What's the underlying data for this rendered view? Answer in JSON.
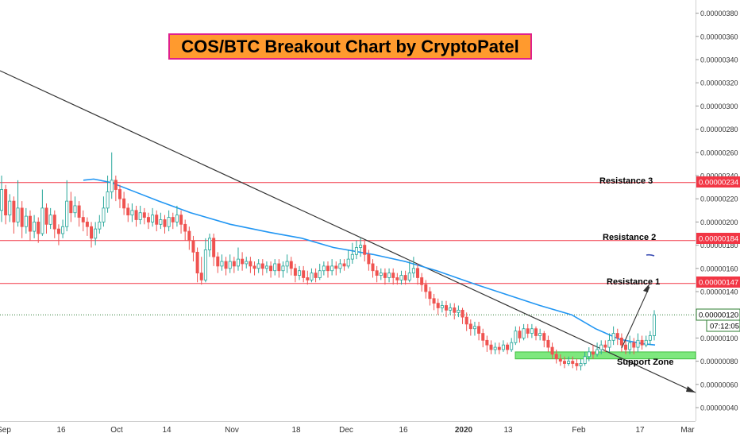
{
  "title": "COS/BTC Breakout Chart by CryptoPatel",
  "chart_data": {
    "type": "candlestick",
    "y_ticks": [
      "0.00000040",
      "0.00000060",
      "0.00000080",
      "0.00000100",
      "0.00000120",
      "0.00000140",
      "0.00000160",
      "0.00000180",
      "0.00000200",
      "0.00000220",
      "0.00000240",
      "0.00000260",
      "0.00000280",
      "0.00000300",
      "0.00000320",
      "0.00000340",
      "0.00000360",
      "0.00000380"
    ],
    "ylim": [
      3.4e-07,
      3.84e-06
    ],
    "x_ticks": [
      "Sep",
      "16",
      "Oct",
      "14",
      "Nov",
      "18",
      "Dec",
      "16",
      "2020",
      "13",
      "Feb",
      "17",
      "Mar"
    ],
    "levels": [
      {
        "name": "Resistance 3",
        "value": 2.34e-06,
        "badge": "0.00000234"
      },
      {
        "name": "Resistance 2",
        "value": 1.84e-06,
        "badge": "0.00000184"
      },
      {
        "name": "Resistance 1",
        "value": 1.47e-06,
        "badge": "0.00000147"
      }
    ],
    "support_zone": {
      "label": "Support Zone",
      "low": 8.2e-07,
      "high": 8.8e-07
    },
    "current_price": {
      "value": 1.2e-06,
      "badge": "0.00000120",
      "countdown": "07:12:05"
    },
    "colors": {
      "up": "#26a69a",
      "down": "#ef5350",
      "ma": "#2196f3",
      "resistance": "#f23645",
      "support": "#7ee87e",
      "trendline": "#333333"
    },
    "ma_series": [
      [
        105,
        2.36e-06
      ],
      [
        118,
        2.37e-06
      ],
      [
        140,
        2.34e-06
      ],
      [
        170,
        2.26e-06
      ],
      [
        200,
        2.18e-06
      ],
      [
        240,
        2.08e-06
      ],
      [
        290,
        1.98e-06
      ],
      [
        340,
        1.91e-06
      ],
      [
        380,
        1.86e-06
      ],
      [
        420,
        1.78e-06
      ],
      [
        470,
        1.72e-06
      ],
      [
        510,
        1.66e-06
      ],
      [
        550,
        1.58e-06
      ],
      [
        600,
        1.46e-06
      ],
      [
        640,
        1.37e-06
      ],
      [
        680,
        1.28e-06
      ],
      [
        720,
        1.2e-06
      ],
      [
        750,
        1.08e-06
      ],
      [
        780,
        9.9e-07
      ],
      [
        810,
        9.5e-07
      ],
      [
        825,
        9.4e-07
      ]
    ],
    "candles": [
      [
        2.1e-06,
        2.28e-06,
        2.4e-06,
        2e-06
      ],
      [
        2.28e-06,
        2.06e-06,
        2.32e-06,
        1.98e-06
      ],
      [
        2.06e-06,
        2.18e-06,
        2.24e-06,
        2e-06
      ],
      [
        2.18e-06,
        2e-06,
        2.22e-06,
        1.9e-06
      ],
      [
        2e-06,
        2.12e-06,
        2.36e-06,
        1.96e-06
      ],
      [
        2.12e-06,
        1.96e-06,
        2.18e-06,
        1.86e-06
      ],
      [
        1.96e-06,
        2.05e-06,
        2.12e-06,
        1.9e-06
      ],
      [
        2.05e-06,
        1.92e-06,
        2.1e-06,
        1.84e-06
      ],
      [
        1.92e-06,
        2e-06,
        2.06e-06,
        1.86e-06
      ],
      [
        2e-06,
        1.9e-06,
        2.04e-06,
        1.82e-06
      ],
      [
        1.9e-06,
        2.12e-06,
        2.28e-06,
        1.88e-06
      ],
      [
        2.12e-06,
        1.98e-06,
        2.16e-06,
        1.9e-06
      ],
      [
        1.98e-06,
        2.06e-06,
        2.12e-06,
        1.94e-06
      ],
      [
        2.06e-06,
        1.94e-06,
        2.1e-06,
        1.86e-06
      ],
      [
        1.94e-06,
        1.9e-06,
        1.98e-06,
        1.8e-06
      ],
      [
        1.9e-06,
        1.96e-06,
        2.02e-06,
        1.86e-06
      ],
      [
        1.96e-06,
        2.18e-06,
        2.36e-06,
        1.92e-06
      ],
      [
        2.18e-06,
        2.08e-06,
        2.26e-06,
        2e-06
      ],
      [
        2.08e-06,
        2.14e-06,
        2.22e-06,
        2.04e-06
      ],
      [
        2.14e-06,
        2.04e-06,
        2.18e-06,
        1.96e-06
      ],
      [
        2.04e-06,
        2e-06,
        2.1e-06,
        1.92e-06
      ],
      [
        2e-06,
        1.96e-06,
        2.04e-06,
        1.88e-06
      ],
      [
        1.96e-06,
        1.86e-06,
        2e-06,
        1.78e-06
      ],
      [
        1.86e-06,
        1.94e-06,
        2e-06,
        1.8e-06
      ],
      [
        1.94e-06,
        2e-06,
        2.06e-06,
        1.9e-06
      ],
      [
        2e-06,
        2.12e-06,
        2.22e-06,
        1.96e-06
      ],
      [
        2.12e-06,
        2.26e-06,
        2.4e-06,
        2.08e-06
      ],
      [
        2.26e-06,
        2.36e-06,
        2.6e-06,
        2.2e-06
      ],
      [
        2.36e-06,
        2.28e-06,
        2.4e-06,
        2.18e-06
      ],
      [
        2.28e-06,
        2.2e-06,
        2.32e-06,
        2.12e-06
      ],
      [
        2.2e-06,
        2.12e-06,
        2.26e-06,
        2.06e-06
      ],
      [
        2.12e-06,
        2.06e-06,
        2.16e-06,
        2e-06
      ],
      [
        2.06e-06,
        2.1e-06,
        2.16e-06,
        2e-06
      ],
      [
        2.1e-06,
        2.02e-06,
        2.14e-06,
        1.96e-06
      ],
      [
        2.02e-06,
        2.08e-06,
        2.14e-06,
        1.98e-06
      ],
      [
        2.08e-06,
        2.04e-06,
        2.12e-06,
        1.98e-06
      ],
      [
        2.04e-06,
        2e-06,
        2.08e-06,
        1.94e-06
      ],
      [
        2e-06,
        2.06e-06,
        2.12e-06,
        1.96e-06
      ],
      [
        2.06e-06,
        1.98e-06,
        2.1e-06,
        1.92e-06
      ],
      [
        1.98e-06,
        2.02e-06,
        2.08e-06,
        1.94e-06
      ],
      [
        2.02e-06,
        1.96e-06,
        2.06e-06,
        1.9e-06
      ],
      [
        1.96e-06,
        2.04e-06,
        2.1e-06,
        1.92e-06
      ],
      [
        2.04e-06,
        2e-06,
        2.08e-06,
        1.94e-06
      ],
      [
        2e-06,
        2.06e-06,
        2.14e-06,
        1.96e-06
      ],
      [
        2.06e-06,
        1.98e-06,
        2.1e-06,
        1.9e-06
      ],
      [
        1.98e-06,
        1.92e-06,
        2.02e-06,
        1.84e-06
      ],
      [
        1.92e-06,
        1.84e-06,
        1.96e-06,
        1.76e-06
      ],
      [
        1.84e-06,
        1.74e-06,
        1.88e-06,
        1.66e-06
      ],
      [
        1.74e-06,
        1.56e-06,
        1.78e-06,
        1.48e-06
      ],
      [
        1.56e-06,
        1.5e-06,
        1.7e-06,
        1.46e-06
      ],
      [
        1.5e-06,
        1.76e-06,
        1.86e-06,
        1.48e-06
      ],
      [
        1.76e-06,
        1.86e-06,
        1.9e-06,
        1.7e-06
      ],
      [
        1.86e-06,
        1.7e-06,
        1.9e-06,
        1.62e-06
      ],
      [
        1.7e-06,
        1.62e-06,
        1.74e-06,
        1.56e-06
      ],
      [
        1.62e-06,
        1.66e-06,
        1.72e-06,
        1.58e-06
      ],
      [
        1.66e-06,
        1.6e-06,
        1.7e-06,
        1.54e-06
      ],
      [
        1.6e-06,
        1.66e-06,
        1.72e-06,
        1.56e-06
      ],
      [
        1.66e-06,
        1.62e-06,
        1.7e-06,
        1.56e-06
      ],
      [
        1.62e-06,
        1.68e-06,
        1.78e-06,
        1.58e-06
      ],
      [
        1.68e-06,
        1.64e-06,
        1.74e-06,
        1.58e-06
      ],
      [
        1.64e-06,
        1.66e-06,
        1.7e-06,
        1.6e-06
      ],
      [
        1.66e-06,
        1.62e-06,
        1.7e-06,
        1.56e-06
      ],
      [
        1.62e-06,
        1.6e-06,
        1.66e-06,
        1.54e-06
      ],
      [
        1.6e-06,
        1.64e-06,
        1.68e-06,
        1.56e-06
      ],
      [
        1.64e-06,
        1.6e-06,
        1.68e-06,
        1.54e-06
      ],
      [
        1.6e-06,
        1.62e-06,
        1.66e-06,
        1.56e-06
      ],
      [
        1.62e-06,
        1.58e-06,
        1.66e-06,
        1.52e-06
      ],
      [
        1.58e-06,
        1.64e-06,
        1.68e-06,
        1.54e-06
      ],
      [
        1.64e-06,
        1.58e-06,
        1.68e-06,
        1.52e-06
      ],
      [
        1.58e-06,
        1.62e-06,
        1.66e-06,
        1.52e-06
      ],
      [
        1.62e-06,
        1.66e-06,
        1.72e-06,
        1.56e-06
      ],
      [
        1.66e-06,
        1.6e-06,
        1.7e-06,
        1.54e-06
      ],
      [
        1.6e-06,
        1.54e-06,
        1.64e-06,
        1.48e-06
      ],
      [
        1.54e-06,
        1.58e-06,
        1.62e-06,
        1.5e-06
      ],
      [
        1.58e-06,
        1.52e-06,
        1.62e-06,
        1.48e-06
      ],
      [
        1.52e-06,
        1.5e-06,
        1.58e-06,
        1.46e-06
      ],
      [
        1.5e-06,
        1.56e-06,
        1.6e-06,
        1.48e-06
      ],
      [
        1.56e-06,
        1.52e-06,
        1.6e-06,
        1.48e-06
      ],
      [
        1.52e-06,
        1.58e-06,
        1.64e-06,
        1.5e-06
      ],
      [
        1.58e-06,
        1.62e-06,
        1.66e-06,
        1.54e-06
      ],
      [
        1.62e-06,
        1.58e-06,
        1.66e-06,
        1.52e-06
      ],
      [
        1.58e-06,
        1.62e-06,
        1.68e-06,
        1.54e-06
      ],
      [
        1.62e-06,
        1.6e-06,
        1.66e-06,
        1.54e-06
      ],
      [
        1.6e-06,
        1.64e-06,
        1.68e-06,
        1.56e-06
      ],
      [
        1.64e-06,
        1.62e-06,
        1.68e-06,
        1.58e-06
      ],
      [
        1.62e-06,
        1.68e-06,
        1.76e-06,
        1.6e-06
      ],
      [
        1.68e-06,
        1.72e-06,
        1.82e-06,
        1.64e-06
      ],
      [
        1.72e-06,
        1.78e-06,
        1.84e-06,
        1.68e-06
      ],
      [
        1.78e-06,
        1.8e-06,
        1.86e-06,
        1.7e-06
      ],
      [
        1.8e-06,
        1.72e-06,
        1.84e-06,
        1.66e-06
      ],
      [
        1.72e-06,
        1.64e-06,
        1.76e-06,
        1.58e-06
      ],
      [
        1.64e-06,
        1.58e-06,
        1.68e-06,
        1.52e-06
      ],
      [
        1.58e-06,
        1.54e-06,
        1.62e-06,
        1.48e-06
      ],
      [
        1.54e-06,
        1.56e-06,
        1.6e-06,
        1.5e-06
      ],
      [
        1.56e-06,
        1.52e-06,
        1.6e-06,
        1.46e-06
      ],
      [
        1.52e-06,
        1.56e-06,
        1.6e-06,
        1.48e-06
      ],
      [
        1.56e-06,
        1.52e-06,
        1.6e-06,
        1.46e-06
      ],
      [
        1.52e-06,
        1.5e-06,
        1.56e-06,
        1.46e-06
      ],
      [
        1.5e-06,
        1.54e-06,
        1.58e-06,
        1.46e-06
      ],
      [
        1.54e-06,
        1.5e-06,
        1.58e-06,
        1.46e-06
      ],
      [
        1.5e-06,
        1.56e-06,
        1.66e-06,
        1.48e-06
      ],
      [
        1.56e-06,
        1.6e-06,
        1.7e-06,
        1.52e-06
      ],
      [
        1.6e-06,
        1.52e-06,
        1.64e-06,
        1.46e-06
      ],
      [
        1.52e-06,
        1.46e-06,
        1.56e-06,
        1.4e-06
      ],
      [
        1.46e-06,
        1.4e-06,
        1.5e-06,
        1.34e-06
      ],
      [
        1.4e-06,
        1.34e-06,
        1.44e-06,
        1.28e-06
      ],
      [
        1.34e-06,
        1.3e-06,
        1.38e-06,
        1.24e-06
      ],
      [
        1.3e-06,
        1.26e-06,
        1.34e-06,
        1.2e-06
      ],
      [
        1.26e-06,
        1.28e-06,
        1.32e-06,
        1.22e-06
      ],
      [
        1.28e-06,
        1.24e-06,
        1.32e-06,
        1.18e-06
      ],
      [
        1.24e-06,
        1.26e-06,
        1.3e-06,
        1.2e-06
      ],
      [
        1.26e-06,
        1.22e-06,
        1.3e-06,
        1.16e-06
      ],
      [
        1.22e-06,
        1.24e-06,
        1.28e-06,
        1.18e-06
      ],
      [
        1.24e-06,
        1.18e-06,
        1.26e-06,
        1.12e-06
      ],
      [
        1.18e-06,
        1.12e-06,
        1.22e-06,
        1.06e-06
      ],
      [
        1.12e-06,
        1.08e-06,
        1.16e-06,
        1.02e-06
      ],
      [
        1.08e-06,
        1.1e-06,
        1.14e-06,
        1.02e-06
      ],
      [
        1.1e-06,
        1.04e-06,
        1.14e-06,
        9.8e-07
      ],
      [
        1.04e-06,
        9.8e-07,
        1.08e-06,
        9.2e-07
      ],
      [
        9.8e-07,
        9.4e-07,
        1.02e-06,
        8.8e-07
      ],
      [
        9.4e-07,
        9e-07,
        9.8e-07,
        8.6e-07
      ],
      [
        9e-07,
        9.2e-07,
        9.6e-07,
        8.6e-07
      ],
      [
        9.2e-07,
        9e-07,
        9.6e-07,
        8.6e-07
      ],
      [
        9e-07,
        9.4e-07,
        9.8e-07,
        8.8e-07
      ],
      [
        9.4e-07,
        9e-07,
        9.6e-07,
        8.6e-07
      ],
      [
        9e-07,
        9.6e-07,
        1e-06,
        8.8e-07
      ],
      [
        9.6e-07,
        1.06e-06,
        1.1e-06,
        9.4e-07
      ],
      [
        1.06e-06,
        1e-06,
        1.1e-06,
        9.6e-07
      ],
      [
        1e-06,
        1.08e-06,
        1.12e-06,
        9.8e-07
      ],
      [
        1.08e-06,
        1.04e-06,
        1.12e-06,
        1e-06
      ],
      [
        1.04e-06,
        1.08e-06,
        1.12e-06,
        1e-06
      ],
      [
        1.08e-06,
        1.02e-06,
        1.1e-06,
        9.8e-07
      ],
      [
        1.02e-06,
        1.04e-06,
        1.08e-06,
        9.8e-07
      ],
      [
        1.04e-06,
        9.8e-07,
        1.06e-06,
        9.2e-07
      ],
      [
        9.8e-07,
        9.2e-07,
        1.02e-06,
        8.8e-07
      ],
      [
        9.2e-07,
        8.6e-07,
        9.6e-07,
        8.2e-07
      ],
      [
        8.6e-07,
        8.2e-07,
        9e-07,
        7.8e-07
      ],
      [
        8.2e-07,
        8e-07,
        8.6e-07,
        7.6e-07
      ],
      [
        8e-07,
        7.8e-07,
        8.4e-07,
        7.4e-07
      ],
      [
        7.8e-07,
        8e-07,
        8.4e-07,
        7.6e-07
      ],
      [
        8e-07,
        7.8e-07,
        8.4e-07,
        7.4e-07
      ],
      [
        7.8e-07,
        7.6e-07,
        8.2e-07,
        7.2e-07
      ],
      [
        7.6e-07,
        7.8e-07,
        8.2e-07,
        7.2e-07
      ],
      [
        7.8e-07,
        8.4e-07,
        8.8e-07,
        7.6e-07
      ],
      [
        8.4e-07,
        8.8e-07,
        9.2e-07,
        8e-07
      ],
      [
        8.8e-07,
        8.6e-07,
        9.4e-07,
        8.2e-07
      ],
      [
        8.6e-07,
        9e-07,
        9.6e-07,
        8.4e-07
      ],
      [
        9e-07,
        9.4e-07,
        9.8e-07,
        8.6e-07
      ],
      [
        9.4e-07,
        9.2e-07,
        9.8e-07,
        8.8e-07
      ],
      [
        9.2e-07,
        9.8e-07,
        1.04e-06,
        8.8e-07
      ],
      [
        9.8e-07,
        1.04e-06,
        1.1e-06,
        9.4e-07
      ],
      [
        1.04e-06,
        1e-06,
        1.08e-06,
        9.4e-07
      ],
      [
        1e-06,
        9.4e-07,
        1.04e-06,
        8.8e-07
      ],
      [
        9.4e-07,
        9e-07,
        9.8e-07,
        8.6e-07
      ],
      [
        9e-07,
        9.6e-07,
        1.02e-06,
        8.6e-07
      ],
      [
        9.6e-07,
        9.2e-07,
        1e-06,
        8.6e-07
      ],
      [
        9.2e-07,
        9.8e-07,
        1.04e-06,
        8.8e-07
      ],
      [
        9.8e-07,
        9.4e-07,
        1.02e-06,
        9e-07
      ],
      [
        9.4e-07,
        9.8e-07,
        1.02e-06,
        9.2e-07
      ],
      [
        9.8e-07,
        1.02e-06,
        1.06e-06,
        9.4e-07
      ],
      [
        1.02e-06,
        1.2e-06,
        1.24e-06,
        9.8e-07
      ]
    ]
  }
}
